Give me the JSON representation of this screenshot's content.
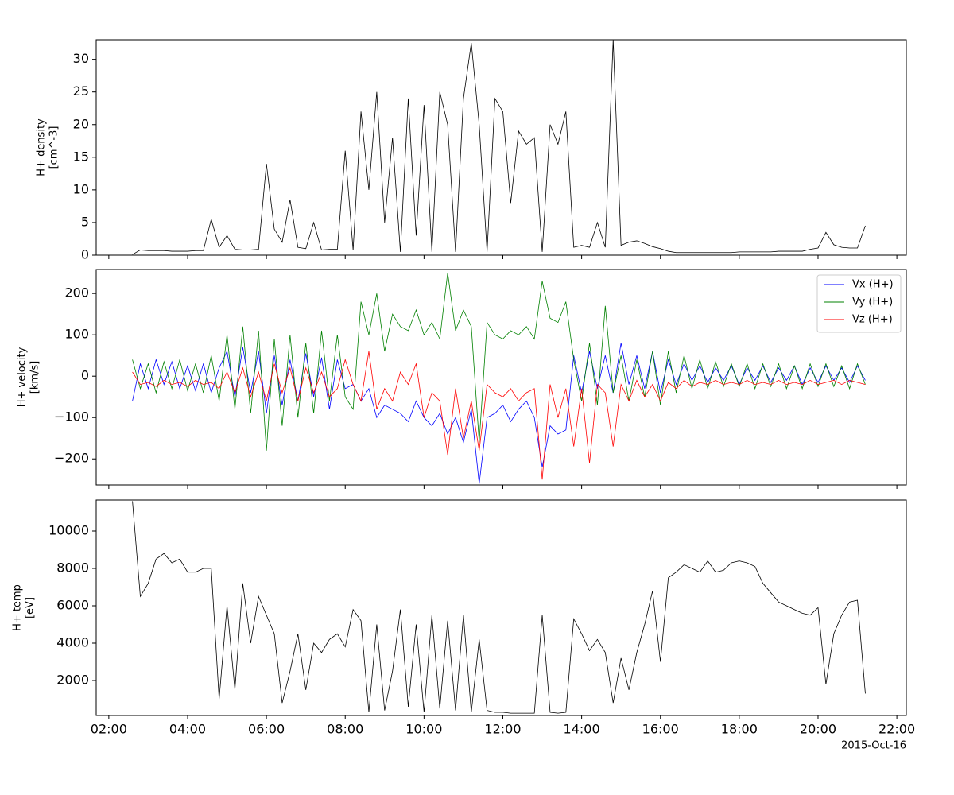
{
  "chart_data": [
    {
      "type": "line",
      "ylabel": [
        "H+ density",
        "[cm^-3]"
      ],
      "x": [
        2.6,
        2.8,
        3.0,
        3.2,
        3.4,
        3.6,
        3.8,
        4.0,
        4.2,
        4.4,
        4.6,
        4.8,
        5.0,
        5.2,
        5.4,
        5.6,
        5.8,
        6.0,
        6.2,
        6.4,
        6.6,
        6.8,
        7.0,
        7.2,
        7.4,
        7.6,
        7.8,
        8.0,
        8.2,
        8.4,
        8.6,
        8.8,
        9.0,
        9.2,
        9.4,
        9.6,
        9.8,
        10.0,
        10.2,
        10.4,
        10.6,
        10.8,
        11.0,
        11.2,
        11.4,
        11.6,
        11.8,
        12.0,
        12.2,
        12.4,
        12.6,
        12.8,
        13.0,
        13.2,
        13.4,
        13.6,
        13.8,
        14.0,
        14.2,
        14.4,
        14.6,
        14.8,
        15.0,
        15.2,
        15.4,
        15.6,
        15.8,
        16.0,
        16.2,
        16.4,
        16.6,
        16.8,
        17.0,
        17.2,
        17.4,
        17.6,
        17.8,
        18.0,
        18.2,
        18.4,
        18.6,
        18.8,
        19.0,
        19.2,
        19.4,
        19.6,
        19.8,
        20.0,
        20.2,
        20.4,
        20.6,
        20.8,
        21.0,
        21.2
      ],
      "series": [
        {
          "name": "H+ density",
          "color": "#000000",
          "values": [
            0.1,
            0.8,
            0.7,
            0.7,
            0.7,
            0.6,
            0.6,
            0.6,
            0.7,
            0.7,
            5.5,
            1.2,
            3,
            0.9,
            0.8,
            0.8,
            0.9,
            14,
            4,
            2,
            8.5,
            1.2,
            1,
            5,
            0.8,
            0.9,
            0.9,
            16,
            0.8,
            22,
            10,
            25,
            5,
            18,
            0.5,
            24,
            3,
            23,
            0.5,
            25,
            20,
            0.5,
            24,
            32.5,
            20,
            0.5,
            24,
            22,
            8,
            19,
            17,
            18,
            0.5,
            20,
            17,
            22,
            1.2,
            1.5,
            1.2,
            5,
            1.2,
            33,
            1.5,
            2,
            2.2,
            1.8,
            1.3,
            1,
            0.6,
            0.4,
            0.4,
            0.4,
            0.4,
            0.4,
            0.4,
            0.4,
            0.4,
            0.5,
            0.5,
            0.5,
            0.5,
            0.5,
            0.6,
            0.6,
            0.6,
            0.6,
            0.9,
            1.1,
            3.5,
            1.6,
            1.2,
            1.1,
            1.1,
            4.5
          ]
        }
      ],
      "xlim": [
        1.68,
        22.24
      ],
      "xticks": [
        {
          "value": 2,
          "label": "02:00"
        },
        {
          "value": 4,
          "label": "04:00"
        },
        {
          "value": 6,
          "label": "06:00"
        },
        {
          "value": 8,
          "label": "08:00"
        },
        {
          "value": 10,
          "label": "10:00"
        },
        {
          "value": 12,
          "label": "12:00"
        },
        {
          "value": 14,
          "label": "14:00"
        },
        {
          "value": 16,
          "label": "16:00"
        },
        {
          "value": 18,
          "label": "18:00"
        },
        {
          "value": 20,
          "label": "20:00"
        },
        {
          "value": 22,
          "label": "22:00"
        }
      ],
      "ylim": [
        0,
        33
      ],
      "yticks": [
        0,
        5,
        10,
        15,
        20,
        25,
        30
      ]
    },
    {
      "type": "line",
      "ylabel": [
        "H+ velocity",
        "[km/s]"
      ],
      "legend": "upper right",
      "x": [
        2.6,
        2.8,
        3.0,
        3.2,
        3.4,
        3.6,
        3.8,
        4.0,
        4.2,
        4.4,
        4.6,
        4.8,
        5.0,
        5.2,
        5.4,
        5.6,
        5.8,
        6.0,
        6.2,
        6.4,
        6.6,
        6.8,
        7.0,
        7.2,
        7.4,
        7.6,
        7.8,
        8.0,
        8.2,
        8.4,
        8.6,
        8.8,
        9.0,
        9.2,
        9.4,
        9.6,
        9.8,
        10.0,
        10.2,
        10.4,
        10.6,
        10.8,
        11.0,
        11.2,
        11.4,
        11.6,
        11.8,
        12.0,
        12.2,
        12.4,
        12.6,
        12.8,
        13.0,
        13.2,
        13.4,
        13.6,
        13.8,
        14.0,
        14.2,
        14.4,
        14.6,
        14.8,
        15.0,
        15.2,
        15.4,
        15.6,
        15.8,
        16.0,
        16.2,
        16.4,
        16.6,
        16.8,
        17.0,
        17.2,
        17.4,
        17.6,
        17.8,
        18.0,
        18.2,
        18.4,
        18.6,
        18.8,
        19.0,
        19.2,
        19.4,
        19.6,
        19.8,
        20.0,
        20.2,
        20.4,
        20.6,
        20.8,
        21.0,
        21.2
      ],
      "series": [
        {
          "name": "Vx (H+)",
          "color": "#0000ff",
          "values": [
            -60,
            30,
            -30,
            40,
            -20,
            35,
            -30,
            25,
            -35,
            30,
            -40,
            20,
            60,
            -50,
            70,
            -40,
            60,
            -90,
            50,
            -70,
            40,
            -60,
            55,
            -50,
            45,
            -80,
            40,
            -30,
            -20,
            -60,
            -30,
            -100,
            -70,
            -80,
            -90,
            -110,
            -60,
            -100,
            -120,
            -90,
            -140,
            -100,
            -160,
            -80,
            -260,
            -100,
            -90,
            -70,
            -110,
            -80,
            -60,
            -100,
            -220,
            -120,
            -140,
            -130,
            50,
            -40,
            60,
            -30,
            50,
            -40,
            80,
            -20,
            50,
            -30,
            60,
            -40,
            40,
            -20,
            30,
            -10,
            25,
            -15,
            20,
            -10,
            25,
            -20,
            20,
            -10,
            25,
            -15,
            20,
            -10,
            25,
            -20,
            20,
            -15,
            25,
            -10,
            20,
            -15,
            25,
            -10
          ]
        },
        {
          "name": "Vy (H+)",
          "color": "#008000",
          "values": [
            40,
            -30,
            30,
            -40,
            35,
            -30,
            40,
            -35,
            30,
            -40,
            50,
            -60,
            100,
            -80,
            120,
            -90,
            110,
            -180,
            90,
            -120,
            100,
            -100,
            80,
            -90,
            110,
            -60,
            100,
            -50,
            -80,
            180,
            100,
            200,
            60,
            150,
            120,
            110,
            160,
            100,
            130,
            90,
            250,
            110,
            160,
            120,
            -160,
            130,
            100,
            90,
            110,
            100,
            120,
            90,
            230,
            140,
            130,
            180,
            40,
            -60,
            80,
            -70,
            170,
            -40,
            50,
            -60,
            40,
            -50,
            60,
            -70,
            60,
            -40,
            50,
            -30,
            40,
            -30,
            35,
            -25,
            30,
            -25,
            30,
            -30,
            30,
            -25,
            30,
            -30,
            25,
            -30,
            30,
            -25,
            30,
            -25,
            25,
            -30,
            30,
            -20
          ]
        },
        {
          "name": "Vz (H+)",
          "color": "#ff0000",
          "values": [
            10,
            -20,
            -15,
            -25,
            -10,
            -20,
            -15,
            -25,
            -10,
            -20,
            -15,
            -30,
            10,
            -40,
            20,
            -50,
            10,
            -60,
            30,
            -40,
            20,
            -60,
            20,
            -40,
            10,
            -50,
            -30,
            40,
            -20,
            -60,
            60,
            -80,
            -30,
            -60,
            10,
            -20,
            30,
            -100,
            -40,
            -60,
            -190,
            -30,
            -150,
            -60,
            -180,
            -20,
            -40,
            -50,
            -30,
            -60,
            -40,
            -30,
            -250,
            -20,
            -100,
            -30,
            -170,
            -30,
            -210,
            -20,
            -40,
            -170,
            -20,
            -60,
            -10,
            -50,
            -20,
            -60,
            -15,
            -30,
            -10,
            -25,
            -15,
            -20,
            -10,
            -20,
            -15,
            -20,
            -10,
            -20,
            -15,
            -20,
            -10,
            -20,
            -15,
            -20,
            -10,
            -20,
            -15,
            -10,
            -20,
            -10,
            -15,
            -20
          ]
        }
      ],
      "xlim": [
        1.68,
        22.24
      ],
      "xticks": [
        {
          "value": 2,
          "label": "02:00"
        },
        {
          "value": 4,
          "label": "04:00"
        },
        {
          "value": 6,
          "label": "06:00"
        },
        {
          "value": 8,
          "label": "08:00"
        },
        {
          "value": 10,
          "label": "10:00"
        },
        {
          "value": 12,
          "label": "12:00"
        },
        {
          "value": 14,
          "label": "14:00"
        },
        {
          "value": 16,
          "label": "16:00"
        },
        {
          "value": 18,
          "label": "18:00"
        },
        {
          "value": 20,
          "label": "20:00"
        },
        {
          "value": 22,
          "label": "22:00"
        }
      ],
      "ylim": [
        -263,
        258
      ],
      "yticks": [
        {
          "value": -200,
          "label": "−200"
        },
        {
          "value": -100,
          "label": "−100"
        },
        0,
        100,
        200
      ]
    },
    {
      "type": "line",
      "ylabel": [
        "H+ temp",
        "[eV]"
      ],
      "x_annotation": "2015-Oct-16",
      "x": [
        2.6,
        2.8,
        3.0,
        3.2,
        3.4,
        3.6,
        3.8,
        4.0,
        4.2,
        4.4,
        4.6,
        4.8,
        5.0,
        5.2,
        5.4,
        5.6,
        5.8,
        6.0,
        6.2,
        6.4,
        6.6,
        6.8,
        7.0,
        7.2,
        7.4,
        7.6,
        7.8,
        8.0,
        8.2,
        8.4,
        8.6,
        8.8,
        9.0,
        9.2,
        9.4,
        9.6,
        9.8,
        10.0,
        10.2,
        10.4,
        10.6,
        10.8,
        11.0,
        11.2,
        11.4,
        11.6,
        11.8,
        12.0,
        12.2,
        12.4,
        12.6,
        12.8,
        13.0,
        13.2,
        13.4,
        13.6,
        13.8,
        14.0,
        14.2,
        14.4,
        14.6,
        14.8,
        15.0,
        15.2,
        15.4,
        15.6,
        15.8,
        16.0,
        16.2,
        16.4,
        16.6,
        16.8,
        17.0,
        17.2,
        17.4,
        17.6,
        17.8,
        18.0,
        18.2,
        18.4,
        18.6,
        18.8,
        19.0,
        19.2,
        19.4,
        19.6,
        19.8,
        20.0,
        20.2,
        20.4,
        20.6,
        20.8,
        21.0,
        21.2
      ],
      "series": [
        {
          "name": "H+ temp",
          "color": "#000000",
          "values": [
            11600,
            6500,
            7200,
            8500,
            8800,
            8300,
            8500,
            7800,
            7800,
            8000,
            8000,
            1000,
            6000,
            1500,
            7200,
            4000,
            6500,
            5500,
            4500,
            800,
            2500,
            4500,
            1500,
            4000,
            3500,
            4200,
            4500,
            3800,
            5800,
            5200,
            300,
            5000,
            400,
            2500,
            5800,
            600,
            5000,
            300,
            5500,
            500,
            5200,
            400,
            5500,
            300,
            4200,
            400,
            300,
            300,
            250,
            250,
            250,
            250,
            5500,
            300,
            250,
            300,
            5300,
            4500,
            3600,
            4200,
            3500,
            800,
            3200,
            1500,
            3500,
            5000,
            6800,
            3000,
            7500,
            7800,
            8200,
            8000,
            7800,
            8400,
            7800,
            7900,
            8300,
            8400,
            8300,
            8100,
            7200,
            6700,
            6200,
            6000,
            5800,
            5600,
            5500,
            5900,
            1800,
            4500,
            5500,
            6200,
            6300,
            1300
          ]
        }
      ],
      "xlim": [
        1.68,
        22.24
      ],
      "xticks": [
        {
          "value": 2,
          "label": "02:00"
        },
        {
          "value": 4,
          "label": "04:00"
        },
        {
          "value": 6,
          "label": "06:00"
        },
        {
          "value": 8,
          "label": "08:00"
        },
        {
          "value": 10,
          "label": "10:00"
        },
        {
          "value": 12,
          "label": "12:00"
        },
        {
          "value": 14,
          "label": "14:00"
        },
        {
          "value": 16,
          "label": "16:00"
        },
        {
          "value": 18,
          "label": "18:00"
        },
        {
          "value": 20,
          "label": "20:00"
        },
        {
          "value": 22,
          "label": "22:00"
        }
      ],
      "ylim": [
        128,
        11660
      ],
      "yticks": [
        2000,
        4000,
        6000,
        8000,
        10000
      ]
    }
  ]
}
